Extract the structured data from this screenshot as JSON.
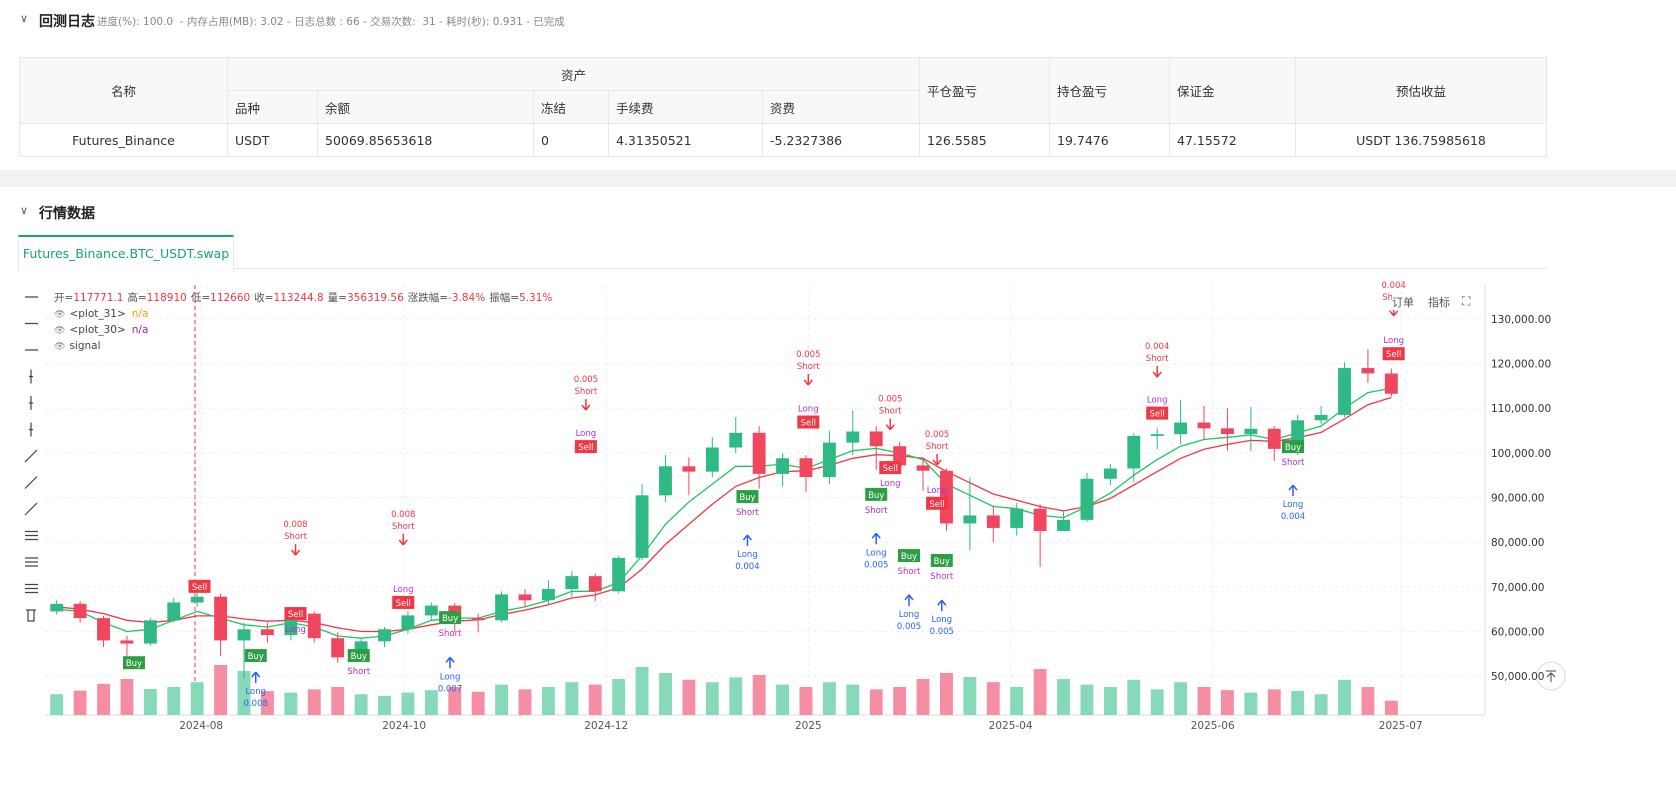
{
  "log": {
    "title": "回测日志",
    "status": "进度(%): 100.0  - 内存占用(MB): 3.02 - 日志总数 : 66 - 交易次数:  31 - 耗时(秒): 0.931 - 已完成",
    "table": {
      "header": [
        "名称",
        "资产",
        "平仓盈亏",
        "持仓盈亏",
        "保证金",
        "预估收益"
      ],
      "sub_header": [
        "品种",
        "余额",
        "冻结",
        "手续费",
        "资费"
      ],
      "rows": [
        [
          "Futures_Binance",
          "USDT",
          50069.85653618,
          0,
          4.31350521,
          -5.2327386,
          126.5585,
          19.7476,
          47.15572,
          "USDT 136.75985618"
        ]
      ]
    }
  },
  "market": {
    "title": "行情数据",
    "tab": "Futures_Binance.BTC_USDT.swap",
    "buttons": [
      "订单",
      "指标"
    ]
  },
  "chart_data": {
    "type": "candlestick",
    "info": [
      {
        "key": "开=",
        "value": "117771.1"
      },
      {
        "key": "高=",
        "value": "118910"
      },
      {
        "key": "低=",
        "value": "112660"
      },
      {
        "key": "收=",
        "value": "113244.8"
      },
      {
        "key": "量=",
        "value": "356319.56"
      },
      {
        "key": "涨跌幅=",
        "value": "-3.84%"
      },
      {
        "key": "振幅=",
        "value": "5.31%"
      }
    ],
    "up_color": "#2fb985",
    "down_color": "#f0465e",
    "volume_up_color": "#86d9b9",
    "volume_down_color": "#f58ea2",
    "grid": true,
    "xlim": [
      -0.5,
      61
    ],
    "xticks": [
      {
        "value": 6.17,
        "label": "2024-08"
      },
      {
        "value": 14.84,
        "label": "2024-10"
      },
      {
        "value": 23.47,
        "label": "2024-12"
      },
      {
        "value": 32.1,
        "label": "2025"
      },
      {
        "value": 40.74,
        "label": "2025-04"
      },
      {
        "value": 49.37,
        "label": "2025-06"
      },
      {
        "value": 57.4,
        "label": "2025-07"
      }
    ],
    "ylim": [
      41300,
      137600
    ],
    "yticks": [
      {
        "value": 50000,
        "label": "50,000.00"
      },
      {
        "value": 60000,
        "label": "60,000.00"
      },
      {
        "value": 70000,
        "label": "70,000.00"
      },
      {
        "value": 80000,
        "label": "80,000.00"
      },
      {
        "value": 90000,
        "label": "90,000.00"
      },
      {
        "value": 100000,
        "label": "100,000.00"
      },
      {
        "value": 110000,
        "label": "110,000.00"
      },
      {
        "value": 120000,
        "label": "120,000.00"
      },
      {
        "value": 130000,
        "label": "130,000.00"
      }
    ],
    "y2lim": [
      0,
      1500000
    ],
    "candles": [
      [
        64500,
        67000,
        63800,
        66200
      ],
      [
        66200,
        66800,
        62000,
        63000
      ],
      [
        63000,
        63500,
        56500,
        58000
      ],
      [
        58000,
        59000,
        54500,
        57300
      ],
      [
        57300,
        63000,
        56800,
        62500
      ],
      [
        62500,
        67500,
        62000,
        66500
      ],
      [
        66500,
        69800,
        65500,
        67800
      ],
      [
        67800,
        68500,
        54500,
        58000
      ],
      [
        58000,
        62000,
        49500,
        60500
      ],
      [
        60500,
        62000,
        57500,
        59200
      ],
      [
        59200,
        65000,
        58000,
        64000
      ],
      [
        64000,
        64500,
        57500,
        58500
      ],
      [
        58500,
        59800,
        53000,
        54200
      ],
      [
        54200,
        58500,
        53500,
        57800
      ],
      [
        57800,
        61000,
        56500,
        60500
      ],
      [
        60500,
        64500,
        59500,
        63600
      ],
      [
        63600,
        66500,
        62500,
        65800
      ],
      [
        65800,
        66400,
        60000,
        63000
      ],
      [
        63000,
        64000,
        59800,
        62500
      ],
      [
        62500,
        69000,
        62000,
        68300
      ],
      [
        68300,
        69500,
        65500,
        67000
      ],
      [
        67000,
        71500,
        66000,
        69500
      ],
      [
        69500,
        73500,
        67800,
        72400
      ],
      [
        72400,
        73000,
        66800,
        69000
      ],
      [
        69000,
        77000,
        68500,
        76500
      ],
      [
        76500,
        93000,
        76000,
        90500
      ],
      [
        90500,
        99500,
        89000,
        97000
      ],
      [
        97000,
        99000,
        90500,
        95800
      ],
      [
        95800,
        103500,
        94500,
        101200
      ],
      [
        101200,
        108000,
        100000,
        104500
      ],
      [
        104500,
        106000,
        92000,
        95300
      ],
      [
        95300,
        100000,
        92500,
        98800
      ],
      [
        98800,
        99500,
        91300,
        94600
      ],
      [
        94600,
        105000,
        93000,
        102300
      ],
      [
        102300,
        109500,
        99500,
        104800
      ],
      [
        104800,
        106000,
        96200,
        101500
      ],
      [
        101500,
        102500,
        96000,
        97200
      ],
      [
        97200,
        99000,
        91500,
        96000
      ],
      [
        96000,
        96500,
        82500,
        84200
      ],
      [
        84200,
        94500,
        78200,
        86000
      ],
      [
        86000,
        88000,
        80000,
        83200
      ],
      [
        83200,
        88800,
        81500,
        87500
      ],
      [
        87500,
        88500,
        74500,
        82500
      ],
      [
        82500,
        87000,
        83000,
        85000
      ],
      [
        85000,
        95500,
        84500,
        94200
      ],
      [
        94200,
        97500,
        92800,
        96500
      ],
      [
        96500,
        104500,
        93500,
        103800
      ],
      [
        103800,
        105500,
        100800,
        104200
      ],
      [
        104200,
        111900,
        102000,
        106800
      ],
      [
        106800,
        110500,
        103000,
        105500
      ],
      [
        105500,
        110000,
        100500,
        104200
      ],
      [
        104200,
        110300,
        100400,
        105400
      ],
      [
        105400,
        106000,
        98200,
        100900
      ],
      [
        100900,
        108500,
        99500,
        107300
      ],
      [
        107300,
        110500,
        106500,
        108500
      ],
      [
        108500,
        120300,
        108000,
        119000
      ],
      [
        119000,
        123200,
        115700,
        117800
      ],
      [
        117771.1,
        118910,
        112660,
        113244.8
      ]
    ],
    "volume": [
      520000,
      610000,
      780000,
      900000,
      650000,
      700000,
      820000,
      1250000,
      1100000,
      600000,
      560000,
      640000,
      700000,
      520000,
      480000,
      560000,
      620000,
      700000,
      580000,
      760000,
      640000,
      700000,
      820000,
      760000,
      900000,
      1200000,
      1050000,
      880000,
      820000,
      940000,
      1000000,
      760000,
      700000,
      820000,
      760000,
      640000,
      700000,
      900000,
      1050000,
      950000,
      820000,
      700000,
      1150000,
      900000,
      760000,
      700000,
      880000,
      640000,
      820000,
      700000,
      620000,
      560000,
      640000,
      600000,
      520000,
      880000,
      700000,
      356319.56
    ],
    "series": [
      {
        "name": "<plot_31>",
        "status": "n/a",
        "legend_color": "#ff9800",
        "color": "#f23645",
        "values": [
          65500,
          65000,
          64000,
          62500,
          62000,
          62500,
          63500,
          63500,
          62800,
          62300,
          62500,
          62000,
          60800,
          60000,
          60000,
          60500,
          61500,
          62300,
          62600,
          63800,
          64800,
          66000,
          67500,
          68200,
          69800,
          74000,
          79500,
          84000,
          88500,
          92500,
          94500,
          95800,
          96000,
          97200,
          98800,
          99600,
          99400,
          98800,
          95800,
          93300,
          90800,
          89400,
          88000,
          87000,
          88000,
          89800,
          92800,
          95800,
          98800,
          100800,
          101900,
          102800,
          102600,
          103400,
          104600,
          107600,
          110800,
          112400
        ]
      },
      {
        "name": "<plot_30>",
        "status": "n/a",
        "legend_color": "#9c27b0",
        "color": "#22c55e",
        "values": [
          65000,
          64500,
          62000,
          60000,
          60500,
          62500,
          64500,
          63000,
          61500,
          61000,
          62000,
          61000,
          59000,
          58500,
          59000,
          60500,
          62500,
          63000,
          63000,
          64500,
          65500,
          67000,
          69000,
          69000,
          71000,
          77000,
          84000,
          89000,
          93000,
          97000,
          97000,
          97500,
          96500,
          98500,
          100500,
          101000,
          100000,
          98500,
          93000,
          90500,
          88000,
          87500,
          86000,
          85500,
          88000,
          91000,
          95000,
          98500,
          101500,
          103000,
          103500,
          104000,
          103000,
          104500,
          106000,
          110000,
          113500,
          114500
        ]
      }
    ],
    "signal_legend": "signal",
    "signal_colors": {
      "Buy": "#2e9e44",
      "Sell": "#f23645"
    },
    "tag_color": "#b030c8",
    "signals": [
      {
        "index": 3.3,
        "price": 52900,
        "label": "Buy"
      },
      {
        "index": 6.1,
        "price": 70000,
        "label": "Sell"
      },
      {
        "index": 8.5,
        "price": 54500,
        "label": "Buy"
      },
      {
        "index": 10.2,
        "price": 63900,
        "label": "Sell",
        "tag": "Long"
      },
      {
        "index": 12.9,
        "price": 54500,
        "label": "Buy",
        "tag": "Short"
      },
      {
        "index": 14.8,
        "price": 66400,
        "label": "Sell",
        "tag": "Long"
      },
      {
        "index": 16.8,
        "price": 63000,
        "label": "Buy",
        "tag": "Short"
      },
      {
        "index": 22.6,
        "price": 101300,
        "label": "Sell",
        "tag": "Long"
      },
      {
        "index": 29.5,
        "price": 90100,
        "label": "Buy",
        "tag": "Short"
      },
      {
        "index": 32.1,
        "price": 106800,
        "label": "Sell",
        "tag": "Long"
      },
      {
        "index": 35.0,
        "price": 90600,
        "label": "Buy",
        "tag": "Short"
      },
      {
        "index": 35.6,
        "price": 96600,
        "label": "Sell",
        "tag": "Long"
      },
      {
        "index": 36.4,
        "price": 76900,
        "label": "Buy",
        "tag": "Short"
      },
      {
        "index": 37.6,
        "price": 88600,
        "label": "Sell",
        "tag": "Long"
      },
      {
        "index": 37.8,
        "price": 75800,
        "label": "Buy",
        "tag": "Short"
      },
      {
        "index": 47.0,
        "price": 108800,
        "label": "Sell",
        "tag": "Long"
      },
      {
        "index": 52.8,
        "price": 101300,
        "label": "Buy",
        "tag": "Short"
      },
      {
        "index": 57.1,
        "price": 122100,
        "label": "Sell",
        "tag": "Long"
      }
    ],
    "orders": [
      {
        "index": 8.5,
        "price": 50900,
        "lines": [
          "Long",
          "0.008"
        ],
        "color": "#2962ff"
      },
      {
        "index": 10.2,
        "price": 77100,
        "lines": [
          "0.008",
          "Short"
        ],
        "color": "#f23645"
      },
      {
        "index": 14.8,
        "price": 79400,
        "lines": [
          "0.008",
          "Short"
        ],
        "color": "#f23645"
      },
      {
        "index": 16.8,
        "price": 54200,
        "lines": [
          "Long",
          "0.007"
        ],
        "color": "#2962ff"
      },
      {
        "index": 22.6,
        "price": 109600,
        "lines": [
          "0.005",
          "Short"
        ],
        "color": "#f23645"
      },
      {
        "index": 29.5,
        "price": 81600,
        "lines": [
          "Long",
          "0.004"
        ],
        "color": "#2962ff"
      },
      {
        "index": 32.1,
        "price": 115200,
        "lines": [
          "0.005",
          "Short"
        ],
        "color": "#f23645"
      },
      {
        "index": 35.0,
        "price": 82000,
        "lines": [
          "Long",
          "0.005"
        ],
        "color": "#2962ff"
      },
      {
        "index": 35.6,
        "price": 105200,
        "lines": [
          "0.005",
          "Short"
        ],
        "color": "#f23645"
      },
      {
        "index": 36.4,
        "price": 68200,
        "lines": [
          "Long",
          "0.005"
        ],
        "color": "#2962ff"
      },
      {
        "index": 37.6,
        "price": 97300,
        "lines": [
          "0.005",
          "Short"
        ],
        "color": "#f23645"
      },
      {
        "index": 37.8,
        "price": 67000,
        "lines": [
          "Long",
          "0.005"
        ],
        "color": "#2962ff"
      },
      {
        "index": 47.0,
        "price": 117000,
        "lines": [
          "0.004",
          "Short"
        ],
        "color": "#f23645"
      },
      {
        "index": 52.8,
        "price": 92800,
        "lines": [
          "Long",
          "0.004"
        ],
        "color": "#2962ff"
      },
      {
        "index": 57.1,
        "price": 130700,
        "lines": [
          "0.004",
          "Short"
        ],
        "color": "#f23645"
      }
    ]
  }
}
